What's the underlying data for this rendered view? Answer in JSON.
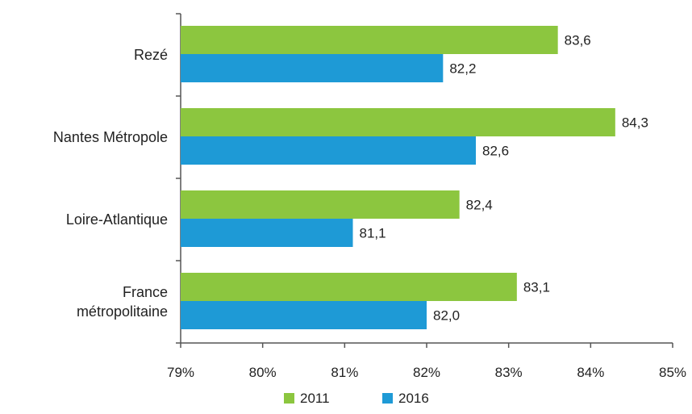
{
  "chart_data": {
    "type": "bar",
    "orientation": "horizontal",
    "categories": [
      [
        "Rezé"
      ],
      [
        "Nantes Métropole"
      ],
      [
        "Loire-Atlantique"
      ],
      [
        "France",
        "métropolitaine"
      ]
    ],
    "series": [
      {
        "name": "2011",
        "color": "#8cc63f",
        "values": [
          83.6,
          84.3,
          82.4,
          83.1
        ],
        "labels": [
          "83,6",
          "84,3",
          "82,4",
          "83,1"
        ]
      },
      {
        "name": "2016",
        "color": "#1e9ad6",
        "values": [
          82.2,
          82.6,
          81.1,
          82.0
        ],
        "labels": [
          "82,2",
          "82,6",
          "81,1",
          "82,0"
        ]
      }
    ],
    "x_ticks": [
      "79%",
      "80%",
      "81%",
      "82%",
      "83%",
      "84%",
      "85%"
    ],
    "xlim": [
      79,
      85
    ],
    "grid": false,
    "legend_position": "bottom"
  }
}
